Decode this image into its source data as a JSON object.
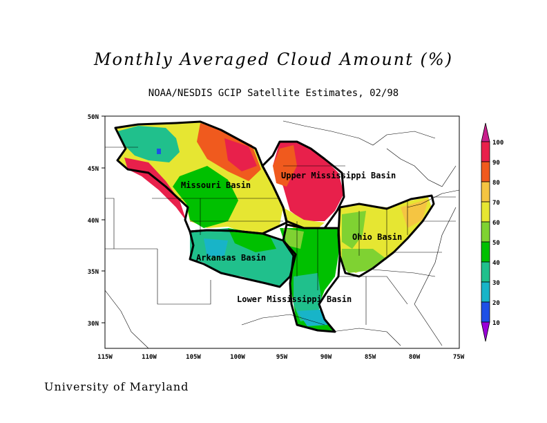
{
  "title": "Monthly Averaged Cloud Amount (%)",
  "subtitle": "NOAA/NESDIS GCIP Satellite Estimates, 02/98",
  "footer": "University of Maryland",
  "axes": {
    "lat_ticks": [
      "50N",
      "45N",
      "40N",
      "35N",
      "30N"
    ],
    "lon_ticks": [
      "115W",
      "110W",
      "105W",
      "100W",
      "95W",
      "90W",
      "85W",
      "80W",
      "75W"
    ]
  },
  "basins": [
    "Missouri Basin",
    "Upper Mississippi Basin",
    "Ohio Basin",
    "Arkansas Basin",
    "Lower Mississippi Basin"
  ],
  "legend": {
    "labels": [
      "100",
      "90",
      "80",
      "70",
      "60",
      "50",
      "40",
      "30",
      "20",
      "10"
    ],
    "colors": [
      "#e8204b",
      "#f05a1e",
      "#f5c542",
      "#e6e632",
      "#7fd232",
      "#00c000",
      "#20c08c",
      "#18b4c8",
      "#1e50e6",
      "#7a00d8",
      "#c800c8"
    ]
  },
  "chart_data": {
    "type": "heatmap",
    "title": "Monthly Averaged Cloud Amount (%)",
    "subtitle": "NOAA/NESDIS GCIP Satellite Estimates, 02/98",
    "x_range": [
      "115W",
      "75W"
    ],
    "y_range": [
      "27N",
      "50N"
    ],
    "color_scale_levels": [
      10,
      20,
      30,
      40,
      50,
      60,
      70,
      80,
      90,
      100
    ],
    "regions": [
      {
        "name": "Missouri Basin",
        "typical_value_range": [
          40,
          90
        ]
      },
      {
        "name": "Upper Mississippi Basin",
        "typical_value_range": [
          80,
          100
        ]
      },
      {
        "name": "Ohio Basin",
        "typical_value_range": [
          60,
          80
        ]
      },
      {
        "name": "Arkansas Basin",
        "typical_value_range": [
          40,
          60
        ]
      },
      {
        "name": "Lower Mississippi Basin",
        "typical_value_range": [
          40,
          70
        ]
      }
    ]
  }
}
